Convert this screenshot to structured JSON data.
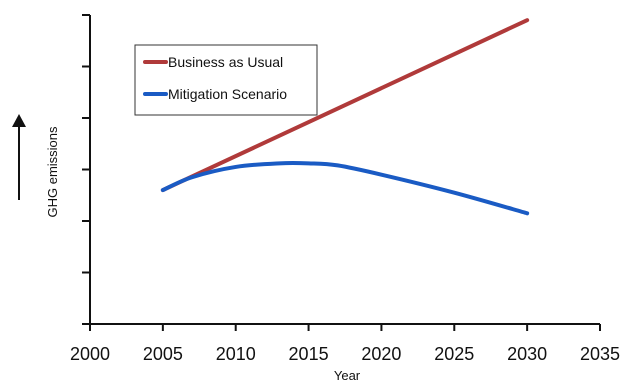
{
  "chart_data": {
    "type": "line",
    "xlabel": "Year",
    "ylabel": "GHG emissions",
    "xlim": [
      2000,
      2035
    ],
    "x_ticks": [
      "2000",
      "2005",
      "2010",
      "2015",
      "2020",
      "2025",
      "2030",
      "2035"
    ],
    "y_tick_count": 7,
    "grid": false,
    "legend_placement": "top-left",
    "series": [
      {
        "name": "Business as Usual",
        "color": "#b03a3a",
        "x": [
          2005,
          2030
        ],
        "y": [
          2.6,
          5.9
        ]
      },
      {
        "name": "Mitigation Scenario",
        "color": "#1a5bc4",
        "x": [
          2005,
          2007,
          2010,
          2013,
          2015,
          2017,
          2020,
          2025,
          2030
        ],
        "y": [
          2.6,
          2.85,
          3.05,
          3.12,
          3.12,
          3.08,
          2.9,
          2.55,
          2.15
        ]
      }
    ]
  }
}
